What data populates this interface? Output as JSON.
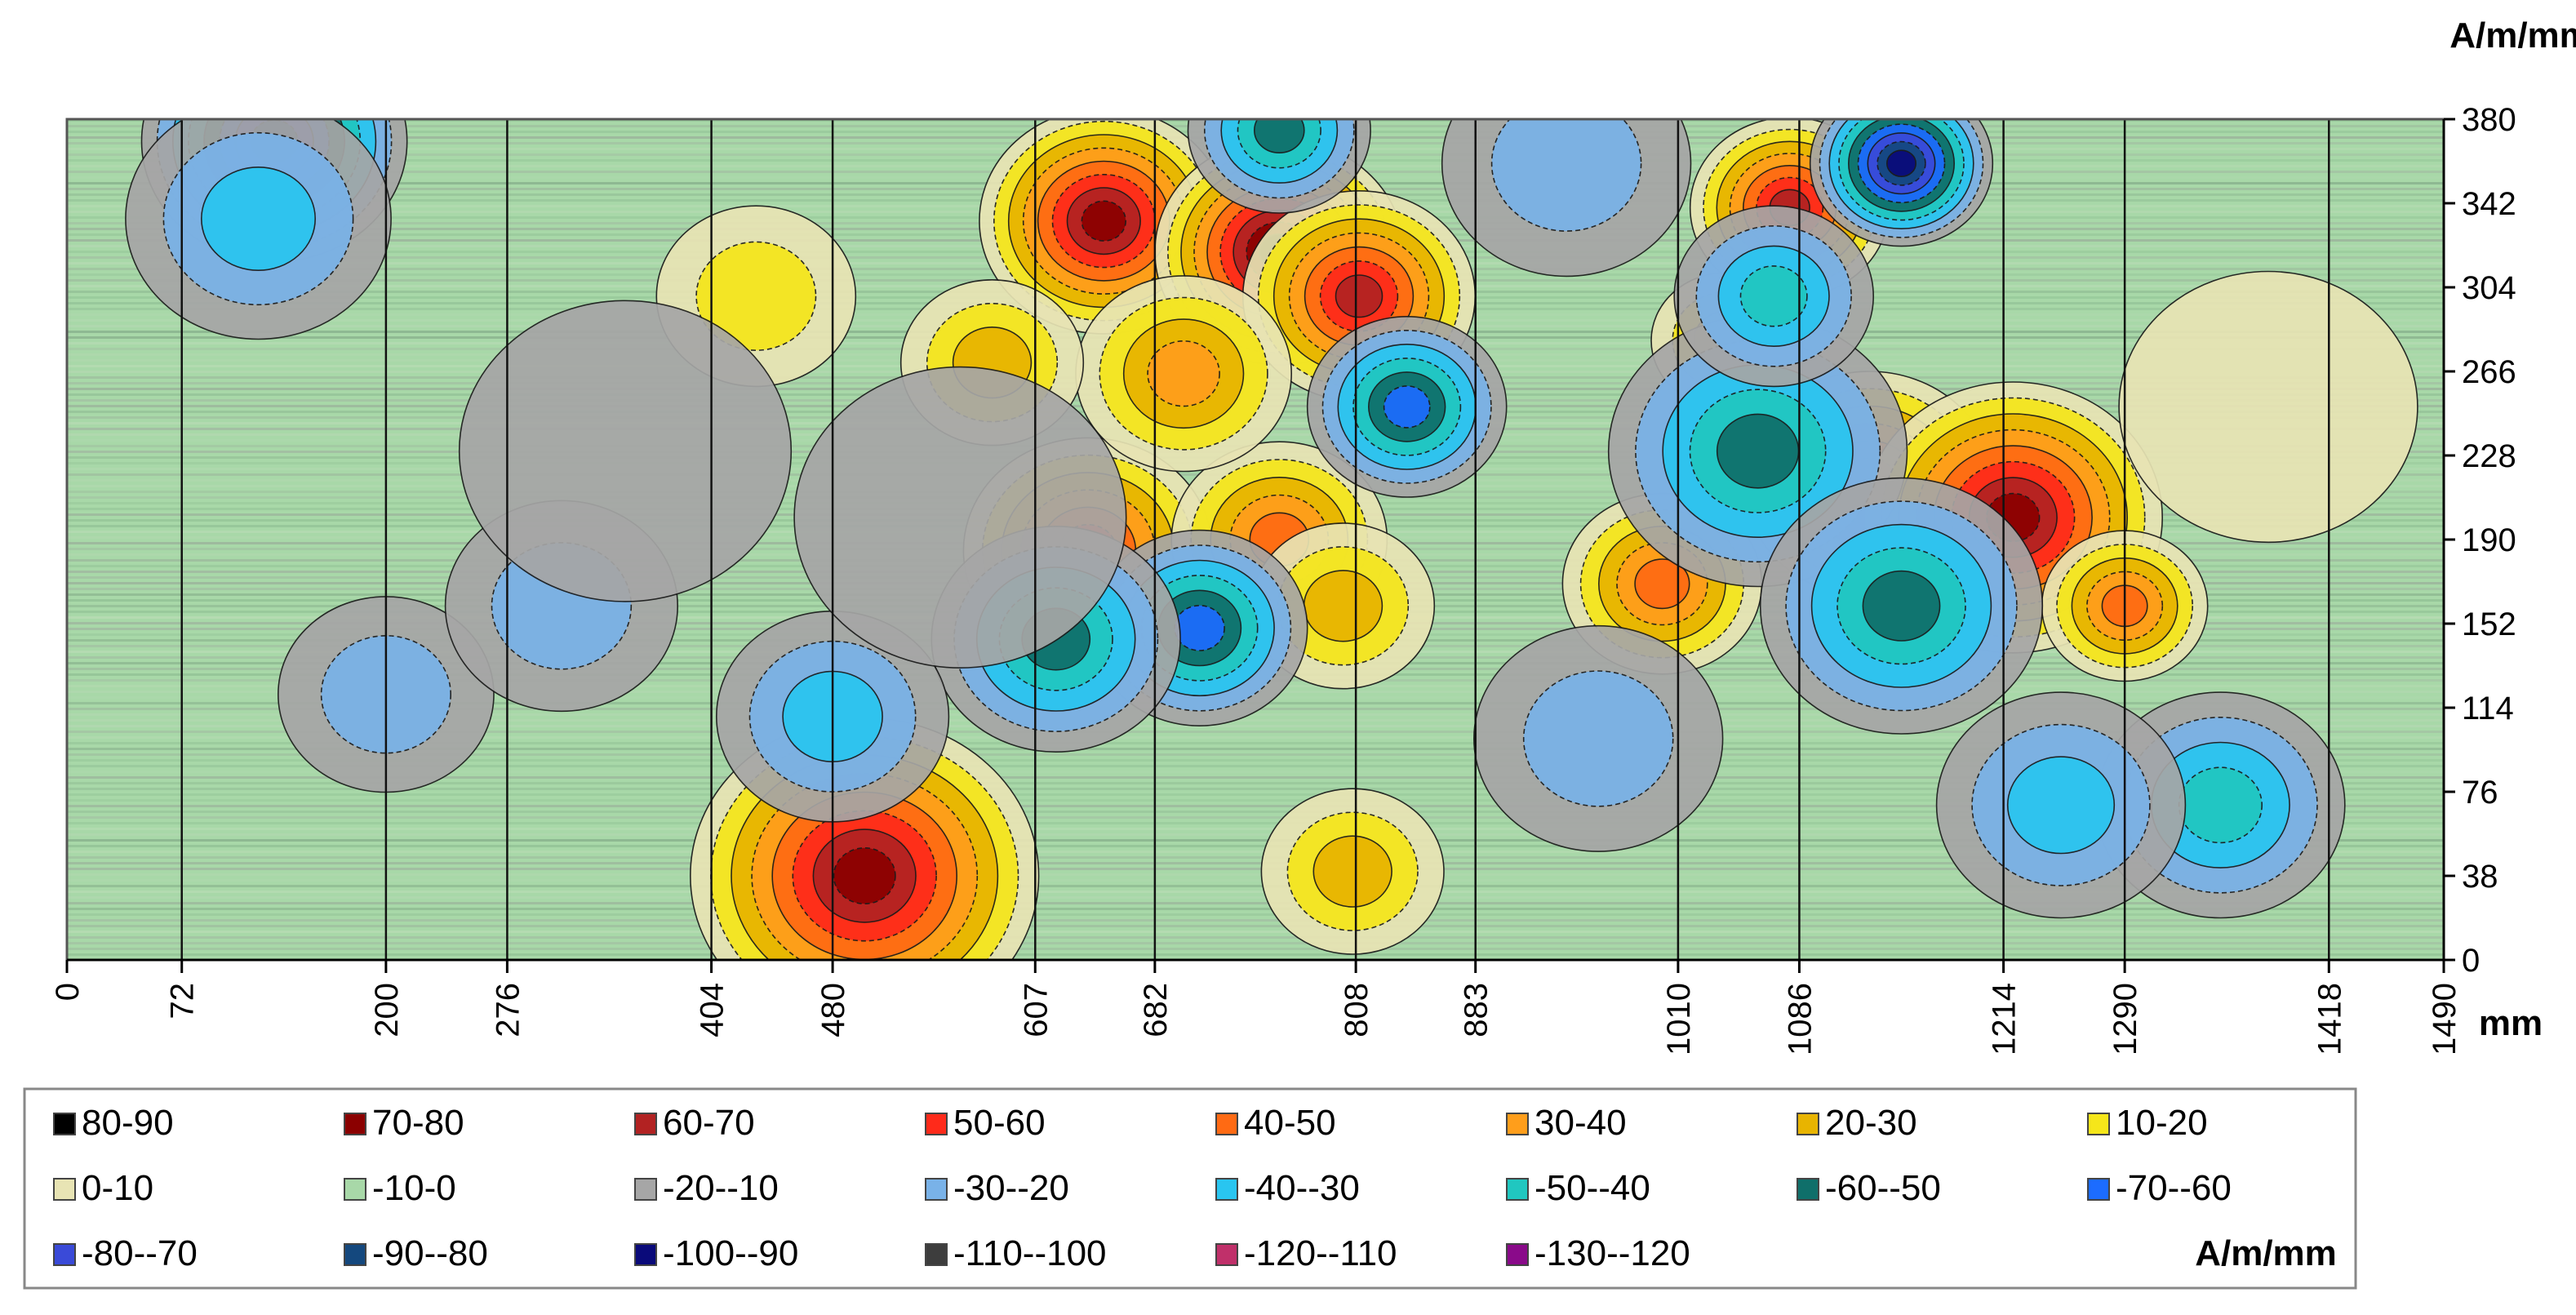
{
  "chart_data": {
    "type": "heatmap",
    "title": "",
    "xlabel": "mm",
    "ylabel": "A/m/mm",
    "x_ticks": [
      "0",
      "72",
      "200",
      "276",
      "404",
      "480",
      "607",
      "682",
      "808",
      "883",
      "1010",
      "1086",
      "1214",
      "1290",
      "1418",
      "1490"
    ],
    "y_ticks": [
      "0",
      "38",
      "76",
      "114",
      "152",
      "190",
      "228",
      "266",
      "304",
      "342",
      "380"
    ],
    "xlim": [
      0,
      1490
    ],
    "ylim": [
      0,
      380
    ],
    "scan_lines_x": [
      0,
      72,
      200,
      276,
      404,
      480,
      607,
      682,
      808,
      883,
      1010,
      1086,
      1214,
      1290,
      1418,
      1490
    ],
    "background_level": "-10-0",
    "features": [
      {
        "x": 650,
        "y": 334,
        "level": "70-80",
        "spread": 30
      },
      {
        "x": 760,
        "y": 320,
        "level": "80-90",
        "spread": 30
      },
      {
        "x": 810,
        "y": 300,
        "level": "60-70",
        "spread": 28
      },
      {
        "x": 500,
        "y": 38,
        "level": "70-80",
        "spread": 42
      },
      {
        "x": 640,
        "y": 185,
        "level": "50-60",
        "spread": 30
      },
      {
        "x": 760,
        "y": 190,
        "level": "40-50",
        "spread": 26
      },
      {
        "x": 1080,
        "y": 340,
        "level": "60-70",
        "spread": 24
      },
      {
        "x": 1130,
        "y": 215,
        "level": "50-60",
        "spread": 30
      },
      {
        "x": 1220,
        "y": 200,
        "level": "70-80",
        "spread": 36
      },
      {
        "x": 1000,
        "y": 170,
        "level": "40-50",
        "spread": 24
      },
      {
        "x": 1290,
        "y": 160,
        "level": "40-50",
        "spread": 20
      },
      {
        "x": 700,
        "y": 265,
        "level": "30-40",
        "spread": 26
      },
      {
        "x": 800,
        "y": 160,
        "level": "20-30",
        "spread": 22
      },
      {
        "x": 806,
        "y": 40,
        "level": "20-30",
        "spread": 22
      },
      {
        "x": 580,
        "y": 270,
        "level": "20-30",
        "spread": 22
      },
      {
        "x": 432,
        "y": 300,
        "level": "10-20",
        "spread": 24
      },
      {
        "x": 1040,
        "y": 280,
        "level": "20-30",
        "spread": 18
      },
      {
        "x": 1150,
        "y": 360,
        "level": "-100--90",
        "spread": 22
      },
      {
        "x": 710,
        "y": 150,
        "level": "-70--60",
        "spread": 26
      },
      {
        "x": 620,
        "y": 145,
        "level": "-60--50",
        "spread": 30
      },
      {
        "x": 840,
        "y": 250,
        "level": "-70--60",
        "spread": 24
      },
      {
        "x": 1060,
        "y": 230,
        "level": "-60--50",
        "spread": 36
      },
      {
        "x": 1150,
        "y": 160,
        "level": "-60--50",
        "spread": 34
      },
      {
        "x": 1070,
        "y": 300,
        "level": "-50--40",
        "spread": 24
      },
      {
        "x": 130,
        "y": 370,
        "level": "-90--80",
        "spread": 32
      },
      {
        "x": 120,
        "y": 335,
        "level": "-40--30",
        "spread": 32
      },
      {
        "x": 760,
        "y": 375,
        "level": "-60--50",
        "spread": 22
      },
      {
        "x": 940,
        "y": 360,
        "level": "-30--20",
        "spread": 30
      },
      {
        "x": 1350,
        "y": 70,
        "level": "-50--40",
        "spread": 30
      },
      {
        "x": 1250,
        "y": 70,
        "level": "-40--30",
        "spread": 30
      },
      {
        "x": 480,
        "y": 110,
        "level": "-40--30",
        "spread": 28
      },
      {
        "x": 200,
        "y": 120,
        "level": "-30--20",
        "spread": 26
      },
      {
        "x": 310,
        "y": 160,
        "level": "-30--20",
        "spread": 28
      },
      {
        "x": 960,
        "y": 100,
        "level": "-30--20",
        "spread": 30
      },
      {
        "x": 560,
        "y": 200,
        "level": "-20--10",
        "spread": 40
      },
      {
        "x": 350,
        "y": 230,
        "level": "-20--10",
        "spread": 40
      },
      {
        "x": 1380,
        "y": 250,
        "level": "0-10",
        "spread": 36
      }
    ],
    "legend": {
      "unit": "A/m/mm",
      "items": [
        {
          "label": "80-90",
          "color": "#000000"
        },
        {
          "label": "70-80",
          "color": "#8b0000"
        },
        {
          "label": "60-70",
          "color": "#b22222"
        },
        {
          "label": "50-60",
          "color": "#ff2a1a"
        },
        {
          "label": "40-50",
          "color": "#ff6a13"
        },
        {
          "label": "30-40",
          "color": "#ff9e1b"
        },
        {
          "label": "20-30",
          "color": "#e8b400"
        },
        {
          "label": "10-20",
          "color": "#f5e61a"
        },
        {
          "label": "0-10",
          "color": "#e8e4b4"
        },
        {
          "label": "-10-0",
          "color": "#a8d8a8"
        },
        {
          "label": "-20--10",
          "color": "#a6a6a6"
        },
        {
          "label": "-30--20",
          "color": "#79b2e8"
        },
        {
          "label": "-40--30",
          "color": "#29c5f0"
        },
        {
          "label": "-50--40",
          "color": "#20c7c0"
        },
        {
          "label": "-60--50",
          "color": "#0f6f6a"
        },
        {
          "label": "-70--60",
          "color": "#1c6cff"
        },
        {
          "label": "-80--70",
          "color": "#3a4ad8"
        },
        {
          "label": "-90--80",
          "color": "#14487e"
        },
        {
          "label": "-100--90",
          "color": "#0a0a7a"
        },
        {
          "label": "-110--100",
          "color": "#3d3d3d"
        },
        {
          "label": "-120--110",
          "color": "#c0306a"
        },
        {
          "label": "-130--120",
          "color": "#8a0a8a"
        }
      ]
    }
  }
}
